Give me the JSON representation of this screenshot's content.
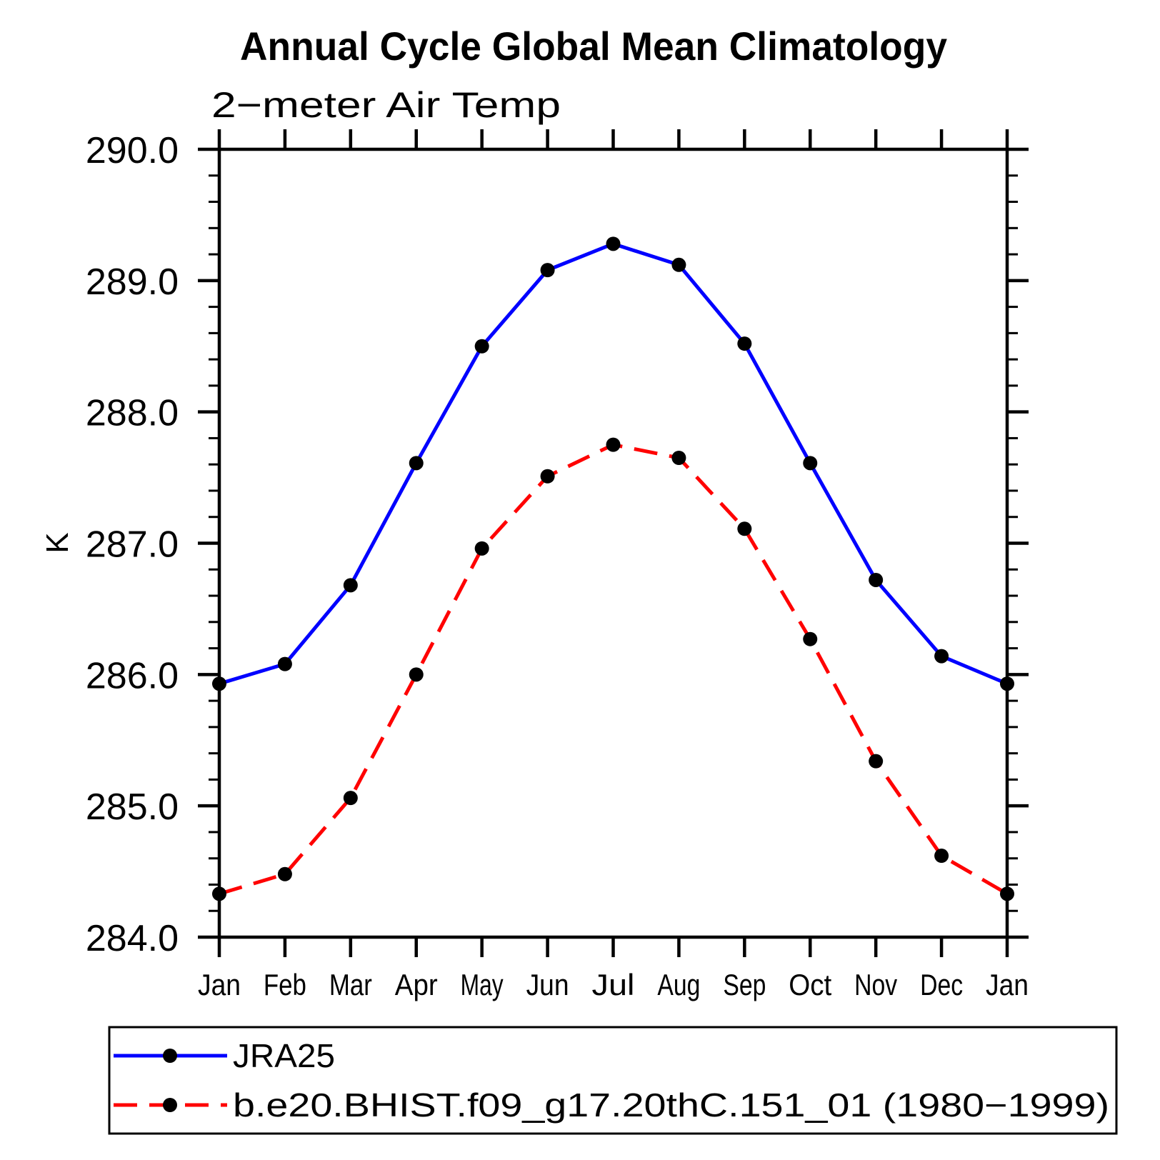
{
  "chart_data": {
    "type": "line",
    "title": "Annual Cycle Global Mean Climatology",
    "subtitle": "2−meter Air Temp",
    "xlabel": "",
    "ylabel": "K",
    "categories": [
      "Jan",
      "Feb",
      "Mar",
      "Apr",
      "May",
      "Jun",
      "Jul",
      "Aug",
      "Sep",
      "Oct",
      "Nov",
      "Dec",
      "Jan"
    ],
    "ylim": [
      284.0,
      290.0
    ],
    "ytick_step": 1.0,
    "ytick_minor_step": 0.2,
    "ytick_labels": [
      "284.0",
      "285.0",
      "286.0",
      "287.0",
      "288.0",
      "289.0",
      "290.0"
    ],
    "grid": false,
    "legend_position": "bottom",
    "frame": "box-with-outward-ticks",
    "series": [
      {
        "name": "JRA25",
        "color": "#0000ff",
        "line_style": "solid",
        "marker": "filled-circle",
        "marker_color": "#000000",
        "values": [
          285.93,
          286.08,
          286.68,
          287.61,
          288.5,
          289.08,
          289.28,
          289.12,
          288.52,
          287.61,
          286.72,
          286.14,
          285.93
        ]
      },
      {
        "name": "b.e20.BHIST.f09_g17.20thC.151_01 (1980−1999)",
        "color": "#ff0000",
        "line_style": "dashed",
        "marker": "filled-circle",
        "marker_color": "#000000",
        "values": [
          284.33,
          284.48,
          285.06,
          286.0,
          286.96,
          287.51,
          287.75,
          287.65,
          287.11,
          286.27,
          285.34,
          284.62,
          284.33
        ]
      }
    ]
  }
}
